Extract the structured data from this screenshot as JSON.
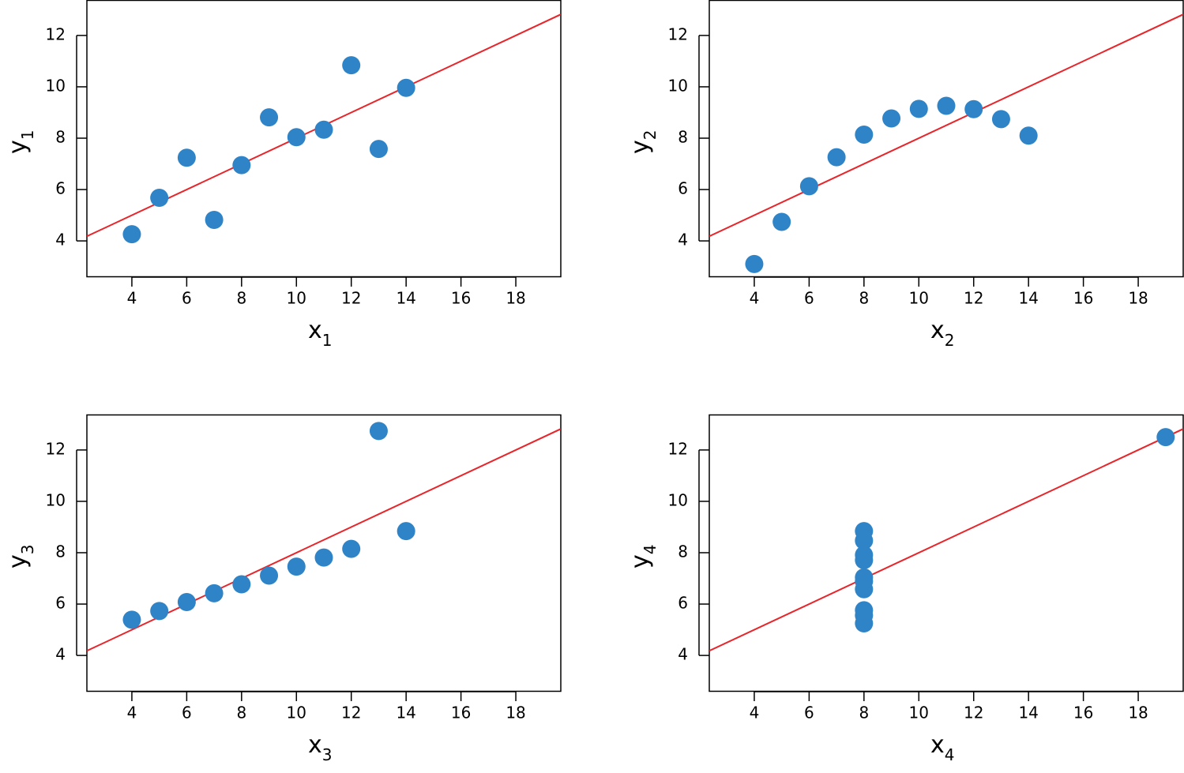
{
  "chart_data": [
    {
      "type": "scatter",
      "xlabel": "x",
      "xlabel_sub": "1",
      "ylabel": "y",
      "ylabel_sub": "1",
      "x": [
        10,
        8,
        13,
        9,
        11,
        14,
        6,
        4,
        12,
        7,
        5
      ],
      "values": [
        8.04,
        6.95,
        7.58,
        8.81,
        8.33,
        9.96,
        7.24,
        4.26,
        10.84,
        4.82,
        5.68
      ],
      "color": "#2f84c8",
      "fit": {
        "intercept": 3,
        "slope": 0.5,
        "color": "#e8252a"
      },
      "xlim": [
        2.36,
        19.64
      ],
      "ylim": [
        2.62,
        13.38
      ],
      "xticks": [
        4,
        6,
        8,
        10,
        12,
        14,
        16,
        18
      ],
      "yticks": [
        4,
        6,
        8,
        10,
        12
      ]
    },
    {
      "type": "scatter",
      "xlabel": "x",
      "xlabel_sub": "2",
      "ylabel": "y",
      "ylabel_sub": "2",
      "x": [
        10,
        8,
        13,
        9,
        11,
        14,
        6,
        4,
        12,
        7,
        5
      ],
      "values": [
        9.14,
        8.14,
        8.74,
        8.77,
        9.26,
        8.1,
        6.13,
        3.1,
        9.13,
        7.26,
        4.74
      ],
      "color": "#2f84c8",
      "fit": {
        "intercept": 3,
        "slope": 0.5,
        "color": "#e8252a"
      },
      "xlim": [
        2.36,
        19.64
      ],
      "ylim": [
        2.62,
        13.38
      ],
      "xticks": [
        4,
        6,
        8,
        10,
        12,
        14,
        16,
        18
      ],
      "yticks": [
        4,
        6,
        8,
        10,
        12
      ]
    },
    {
      "type": "scatter",
      "xlabel": "x",
      "xlabel_sub": "3",
      "ylabel": "y",
      "ylabel_sub": "3",
      "x": [
        10,
        8,
        13,
        9,
        11,
        14,
        6,
        4,
        12,
        7,
        5
      ],
      "values": [
        7.46,
        6.77,
        12.74,
        7.11,
        7.81,
        8.84,
        6.08,
        5.39,
        8.15,
        6.42,
        5.73
      ],
      "color": "#2f84c8",
      "fit": {
        "intercept": 3,
        "slope": 0.5,
        "color": "#e8252a"
      },
      "xlim": [
        2.36,
        19.64
      ],
      "ylim": [
        2.62,
        13.38
      ],
      "xticks": [
        4,
        6,
        8,
        10,
        12,
        14,
        16,
        18
      ],
      "yticks": [
        4,
        6,
        8,
        10,
        12
      ]
    },
    {
      "type": "scatter",
      "xlabel": "x",
      "xlabel_sub": "4",
      "ylabel": "y",
      "ylabel_sub": "4",
      "x": [
        8,
        8,
        8,
        8,
        8,
        8,
        8,
        19,
        8,
        8,
        8
      ],
      "values": [
        6.58,
        5.76,
        7.71,
        8.84,
        8.47,
        7.04,
        5.25,
        12.5,
        5.56,
        7.91,
        6.89
      ],
      "color": "#2f84c8",
      "fit": {
        "intercept": 3,
        "slope": 0.5,
        "color": "#e8252a"
      },
      "xlim": [
        2.36,
        19.64
      ],
      "ylim": [
        2.62,
        13.38
      ],
      "xticks": [
        4,
        6,
        8,
        10,
        12,
        14,
        16,
        18
      ],
      "yticks": [
        4,
        6,
        8,
        10,
        12
      ]
    }
  ]
}
